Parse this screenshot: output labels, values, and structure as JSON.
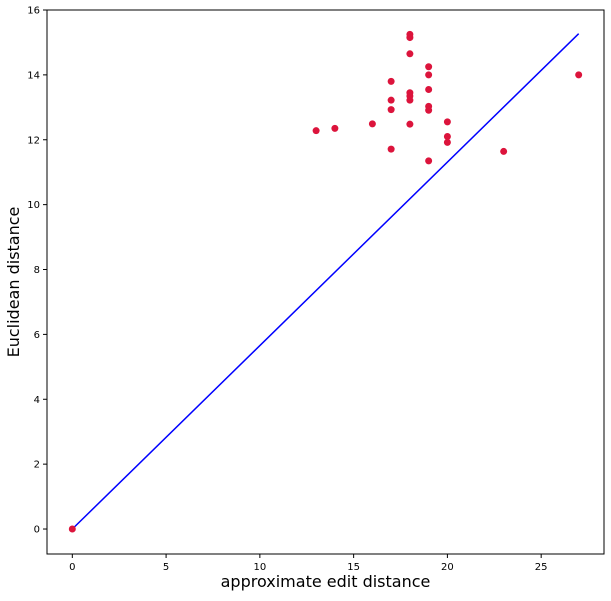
{
  "chart_data": {
    "type": "scatter",
    "title": "",
    "xlabel": "approximate edit distance",
    "ylabel": "Euclidean distance",
    "xlim": [
      -1.35,
      28.35
    ],
    "ylim": [
      -0.77,
      16.0
    ],
    "x_ticks": [
      0,
      5,
      10,
      15,
      20,
      25
    ],
    "y_ticks": [
      0,
      2,
      4,
      6,
      8,
      10,
      12,
      14,
      16
    ],
    "grid": false,
    "legend": "none",
    "colors": {
      "points": "#dc143c",
      "line": "#0000ff",
      "axes": "#000000",
      "background": "#ffffff"
    },
    "series": [
      {
        "type": "scatter",
        "points": [
          {
            "x": 0,
            "y": 0
          },
          {
            "x": 13,
            "y": 12.28
          },
          {
            "x": 14,
            "y": 12.35
          },
          {
            "x": 16,
            "y": 12.49
          },
          {
            "x": 17,
            "y": 13.8
          },
          {
            "x": 17,
            "y": 13.22
          },
          {
            "x": 17,
            "y": 12.93
          },
          {
            "x": 17,
            "y": 11.71
          },
          {
            "x": 18,
            "y": 15.25
          },
          {
            "x": 18,
            "y": 15.15
          },
          {
            "x": 18,
            "y": 14.65
          },
          {
            "x": 18,
            "y": 13.45
          },
          {
            "x": 18,
            "y": 13.35
          },
          {
            "x": 18,
            "y": 13.22
          },
          {
            "x": 18,
            "y": 12.48
          },
          {
            "x": 19,
            "y": 14.25
          },
          {
            "x": 19,
            "y": 14.0
          },
          {
            "x": 19,
            "y": 13.55
          },
          {
            "x": 19,
            "y": 13.03
          },
          {
            "x": 19,
            "y": 12.91
          },
          {
            "x": 19,
            "y": 11.35
          },
          {
            "x": 20,
            "y": 12.55
          },
          {
            "x": 20,
            "y": 12.1
          },
          {
            "x": 20,
            "y": 11.92
          },
          {
            "x": 23,
            "y": 11.64
          },
          {
            "x": 27,
            "y": 14.0
          }
        ]
      },
      {
        "type": "line",
        "points": [
          {
            "x": 0,
            "y": 0
          },
          {
            "x": 27,
            "y": 15.27
          }
        ]
      }
    ]
  }
}
